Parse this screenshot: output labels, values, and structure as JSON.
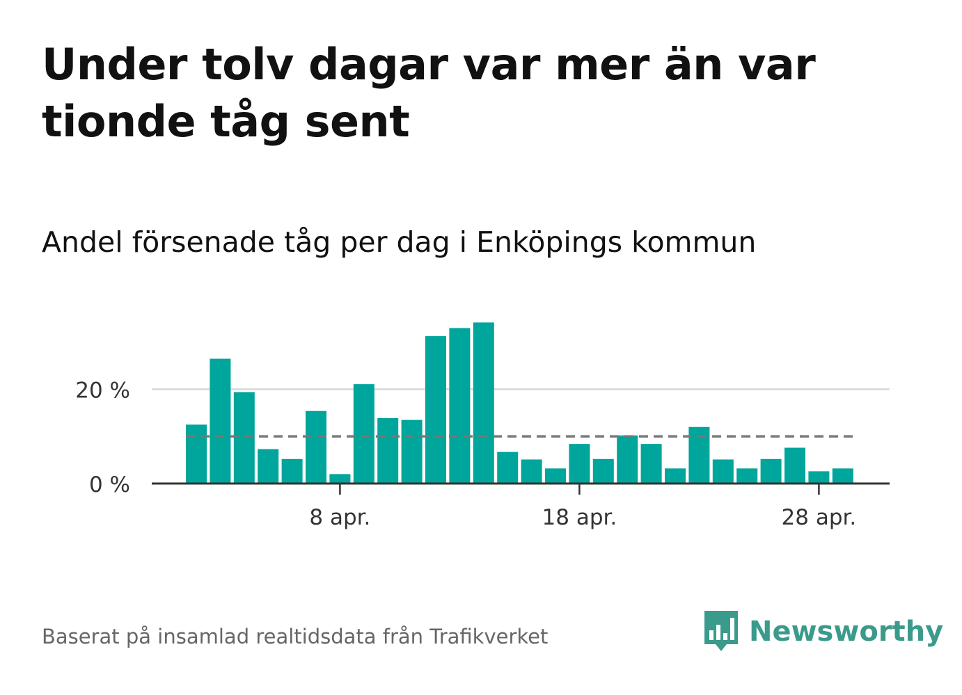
{
  "title": "Under tolv dagar var mer än var tionde tåg sent",
  "subtitle": "Andel försenade tåg per dag i Enköpings kommun",
  "source": "Baserat på insamlad realtidsdata från Trafikverket",
  "brand": {
    "name": "Newsworthy",
    "color": "#3a9a8b",
    "icon": "newsworthy-logo-icon"
  },
  "colors": {
    "bar": "#00a59b",
    "reference_line": "#777777",
    "grid": "#dddddd",
    "axis": "#333333"
  },
  "chart_data": {
    "type": "bar",
    "title": "Andel försenade tåg per dag i Enköpings kommun",
    "xlabel": "",
    "ylabel": "",
    "unit": "%",
    "ylim": [
      0,
      36
    ],
    "y_ticks": [
      {
        "value": 0,
        "label": "0 %"
      },
      {
        "value": 20,
        "label": "20 %"
      }
    ],
    "x_ticks": [
      {
        "index": 6,
        "label": "8 apr."
      },
      {
        "index": 16,
        "label": "18 apr."
      },
      {
        "index": 26,
        "label": "28 apr."
      }
    ],
    "categories": [
      "2 apr.",
      "3 apr.",
      "4 apr.",
      "5 apr.",
      "6 apr.",
      "7 apr.",
      "8 apr.",
      "9 apr.",
      "10 apr.",
      "11 apr.",
      "12 apr.",
      "13 apr.",
      "14 apr.",
      "15 apr.",
      "16 apr.",
      "17 apr.",
      "18 apr.",
      "19 apr.",
      "20 apr.",
      "21 apr.",
      "22 apr.",
      "23 apr.",
      "24 apr.",
      "25 apr.",
      "26 apr.",
      "27 apr.",
      "28 apr.",
      "29 apr."
    ],
    "values": [
      12.5,
      26.5,
      19.4,
      7.3,
      5.2,
      15.4,
      2.0,
      21.1,
      13.9,
      13.5,
      31.3,
      33.0,
      34.2,
      6.7,
      5.1,
      3.2,
      8.4,
      5.2,
      10.2,
      8.4,
      3.2,
      12.0,
      5.1,
      3.2,
      5.2,
      7.6,
      2.6,
      3.2
    ],
    "reference_line": {
      "value": 10,
      "style": "dashed"
    },
    "grid": true
  }
}
